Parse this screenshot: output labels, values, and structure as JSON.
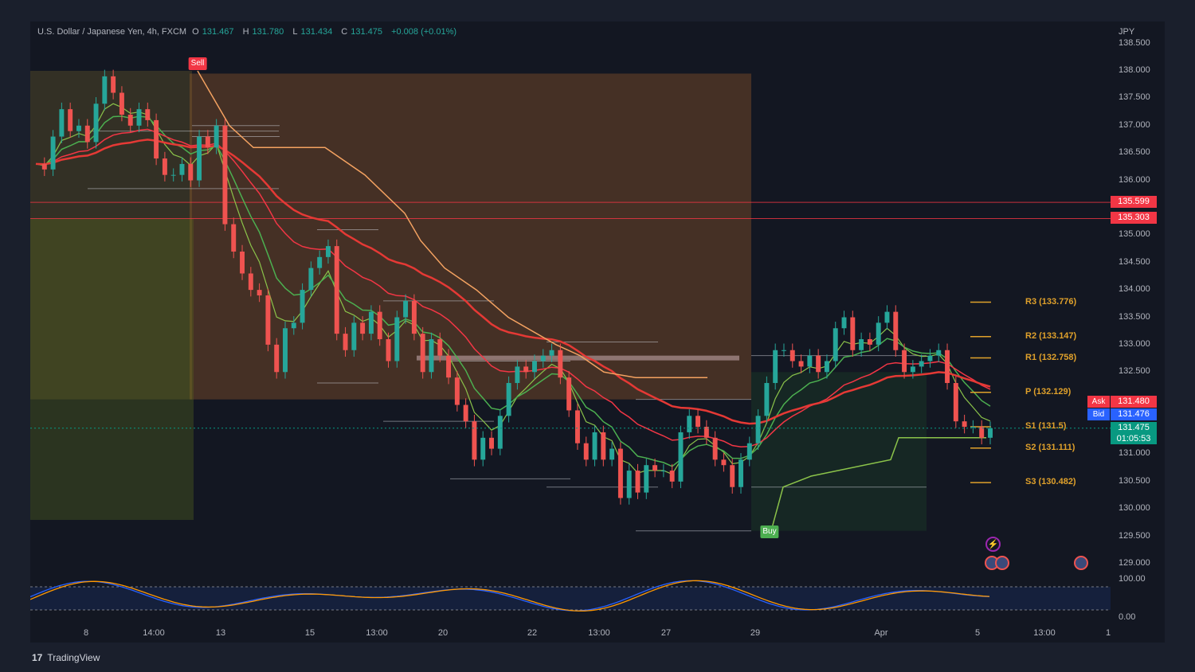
{
  "header": {
    "symbol": "U.S. Dollar / Japanese Yen, 4h, FXCM",
    "o_label": "O",
    "o": "131.467",
    "h_label": "H",
    "h": "131.780",
    "l_label": "L",
    "l": "131.434",
    "c_label": "C",
    "c": "131.475",
    "change": "+0.008 (+0.01%)",
    "currency": "JPY"
  },
  "brand": {
    "logo": "17",
    "name": "TradingView"
  },
  "colors": {
    "up": "#26a69a",
    "down": "#ef5350",
    "bg": "#131722",
    "pivot": "#e0a12b",
    "ema_green": "#4caf50",
    "ema_red": "#f23645",
    "supertrend_down": "#f4a261",
    "supertrend_up": "#8bc34a",
    "osc_blue": "#2962ff",
    "osc_orange": "#ff9800"
  },
  "chart_data": {
    "type": "candlestick",
    "symbol": "USDJPY",
    "timeframe": "4h",
    "ylim": [
      129.0,
      138.5
    ],
    "y_ticks": [
      "138.500",
      "138.000",
      "137.500",
      "137.000",
      "136.500",
      "136.000",
      "135.000",
      "134.500",
      "134.000",
      "133.500",
      "133.000",
      "132.500",
      "131.000",
      "130.500",
      "130.000",
      "129.500",
      "129.000"
    ],
    "x_ticks": [
      "8",
      "14:00",
      "13",
      "15",
      "13:00",
      "20",
      "22",
      "13:00",
      "27",
      "29",
      "Apr",
      "5",
      "13:00",
      "1"
    ],
    "close_path": [
      136.3,
      136.2,
      136.8,
      137.3,
      136.9,
      137.0,
      136.7,
      137.4,
      137.9,
      137.6,
      137.2,
      137.0,
      137.3,
      137.1,
      136.4,
      136.1,
      136.1,
      136.3,
      136.0,
      136.8,
      136.6,
      137.0,
      135.2,
      134.7,
      134.3,
      134.0,
      133.9,
      133.0,
      132.5,
      133.3,
      133.4,
      134.0,
      134.4,
      134.6,
      134.8,
      133.2,
      132.9,
      133.4,
      133.2,
      133.6,
      133.1,
      132.7,
      133.5,
      133.8,
      133.2,
      132.5,
      133.1,
      132.8,
      132.4,
      131.9,
      131.6,
      130.9,
      131.3,
      131.1,
      131.7,
      132.3,
      132.6,
      132.5,
      132.7,
      132.8,
      132.9,
      132.4,
      131.8,
      131.2,
      130.9,
      131.4,
      130.9,
      131.1,
      130.2,
      130.7,
      130.3,
      130.8,
      130.7,
      130.7,
      130.5,
      131.4,
      131.7,
      131.5,
      131.3,
      130.9,
      130.8,
      130.4,
      130.9,
      131.2,
      131.7,
      132.3,
      132.9,
      132.9,
      132.7,
      132.6,
      132.8,
      132.5,
      132.7,
      133.3,
      133.5,
      132.9,
      133.1,
      133.0,
      133.4,
      133.6,
      132.9,
      132.5,
      132.6,
      132.7,
      132.8,
      132.9,
      132.3,
      131.6,
      131.5,
      131.5,
      131.3,
      131.475
    ],
    "current_price": 131.475,
    "current_countdown": "01:05:53",
    "ask": 131.48,
    "bid": 131.476,
    "ask_label": "Ask",
    "bid_label": "Bid",
    "horizontal_levels": [
      {
        "label": "135.599",
        "price": 135.599
      },
      {
        "label": "135.303",
        "price": 135.303
      }
    ],
    "pivots": [
      {
        "name": "R3",
        "label": "R3 (133.776)",
        "price": 133.776
      },
      {
        "name": "R2",
        "label": "R2 (133.147)",
        "price": 133.147
      },
      {
        "name": "R1",
        "label": "R1 (132.758)",
        "price": 132.758
      },
      {
        "name": "P",
        "label": "P (132.129)",
        "price": 132.129
      },
      {
        "name": "S1",
        "label": "S1 (131.5)",
        "price": 131.5
      },
      {
        "name": "S2",
        "label": "S2 (131.111)",
        "price": 131.111
      },
      {
        "name": "S3",
        "label": "S3 (130.482)",
        "price": 130.482
      }
    ],
    "signals": [
      {
        "type": "sell",
        "label": "Sell"
      },
      {
        "type": "buy",
        "label": "Buy"
      }
    ],
    "oscillator": {
      "upper_label": "100.00",
      "lower_label": "0.00",
      "ylim": [
        0,
        100
      ]
    }
  }
}
